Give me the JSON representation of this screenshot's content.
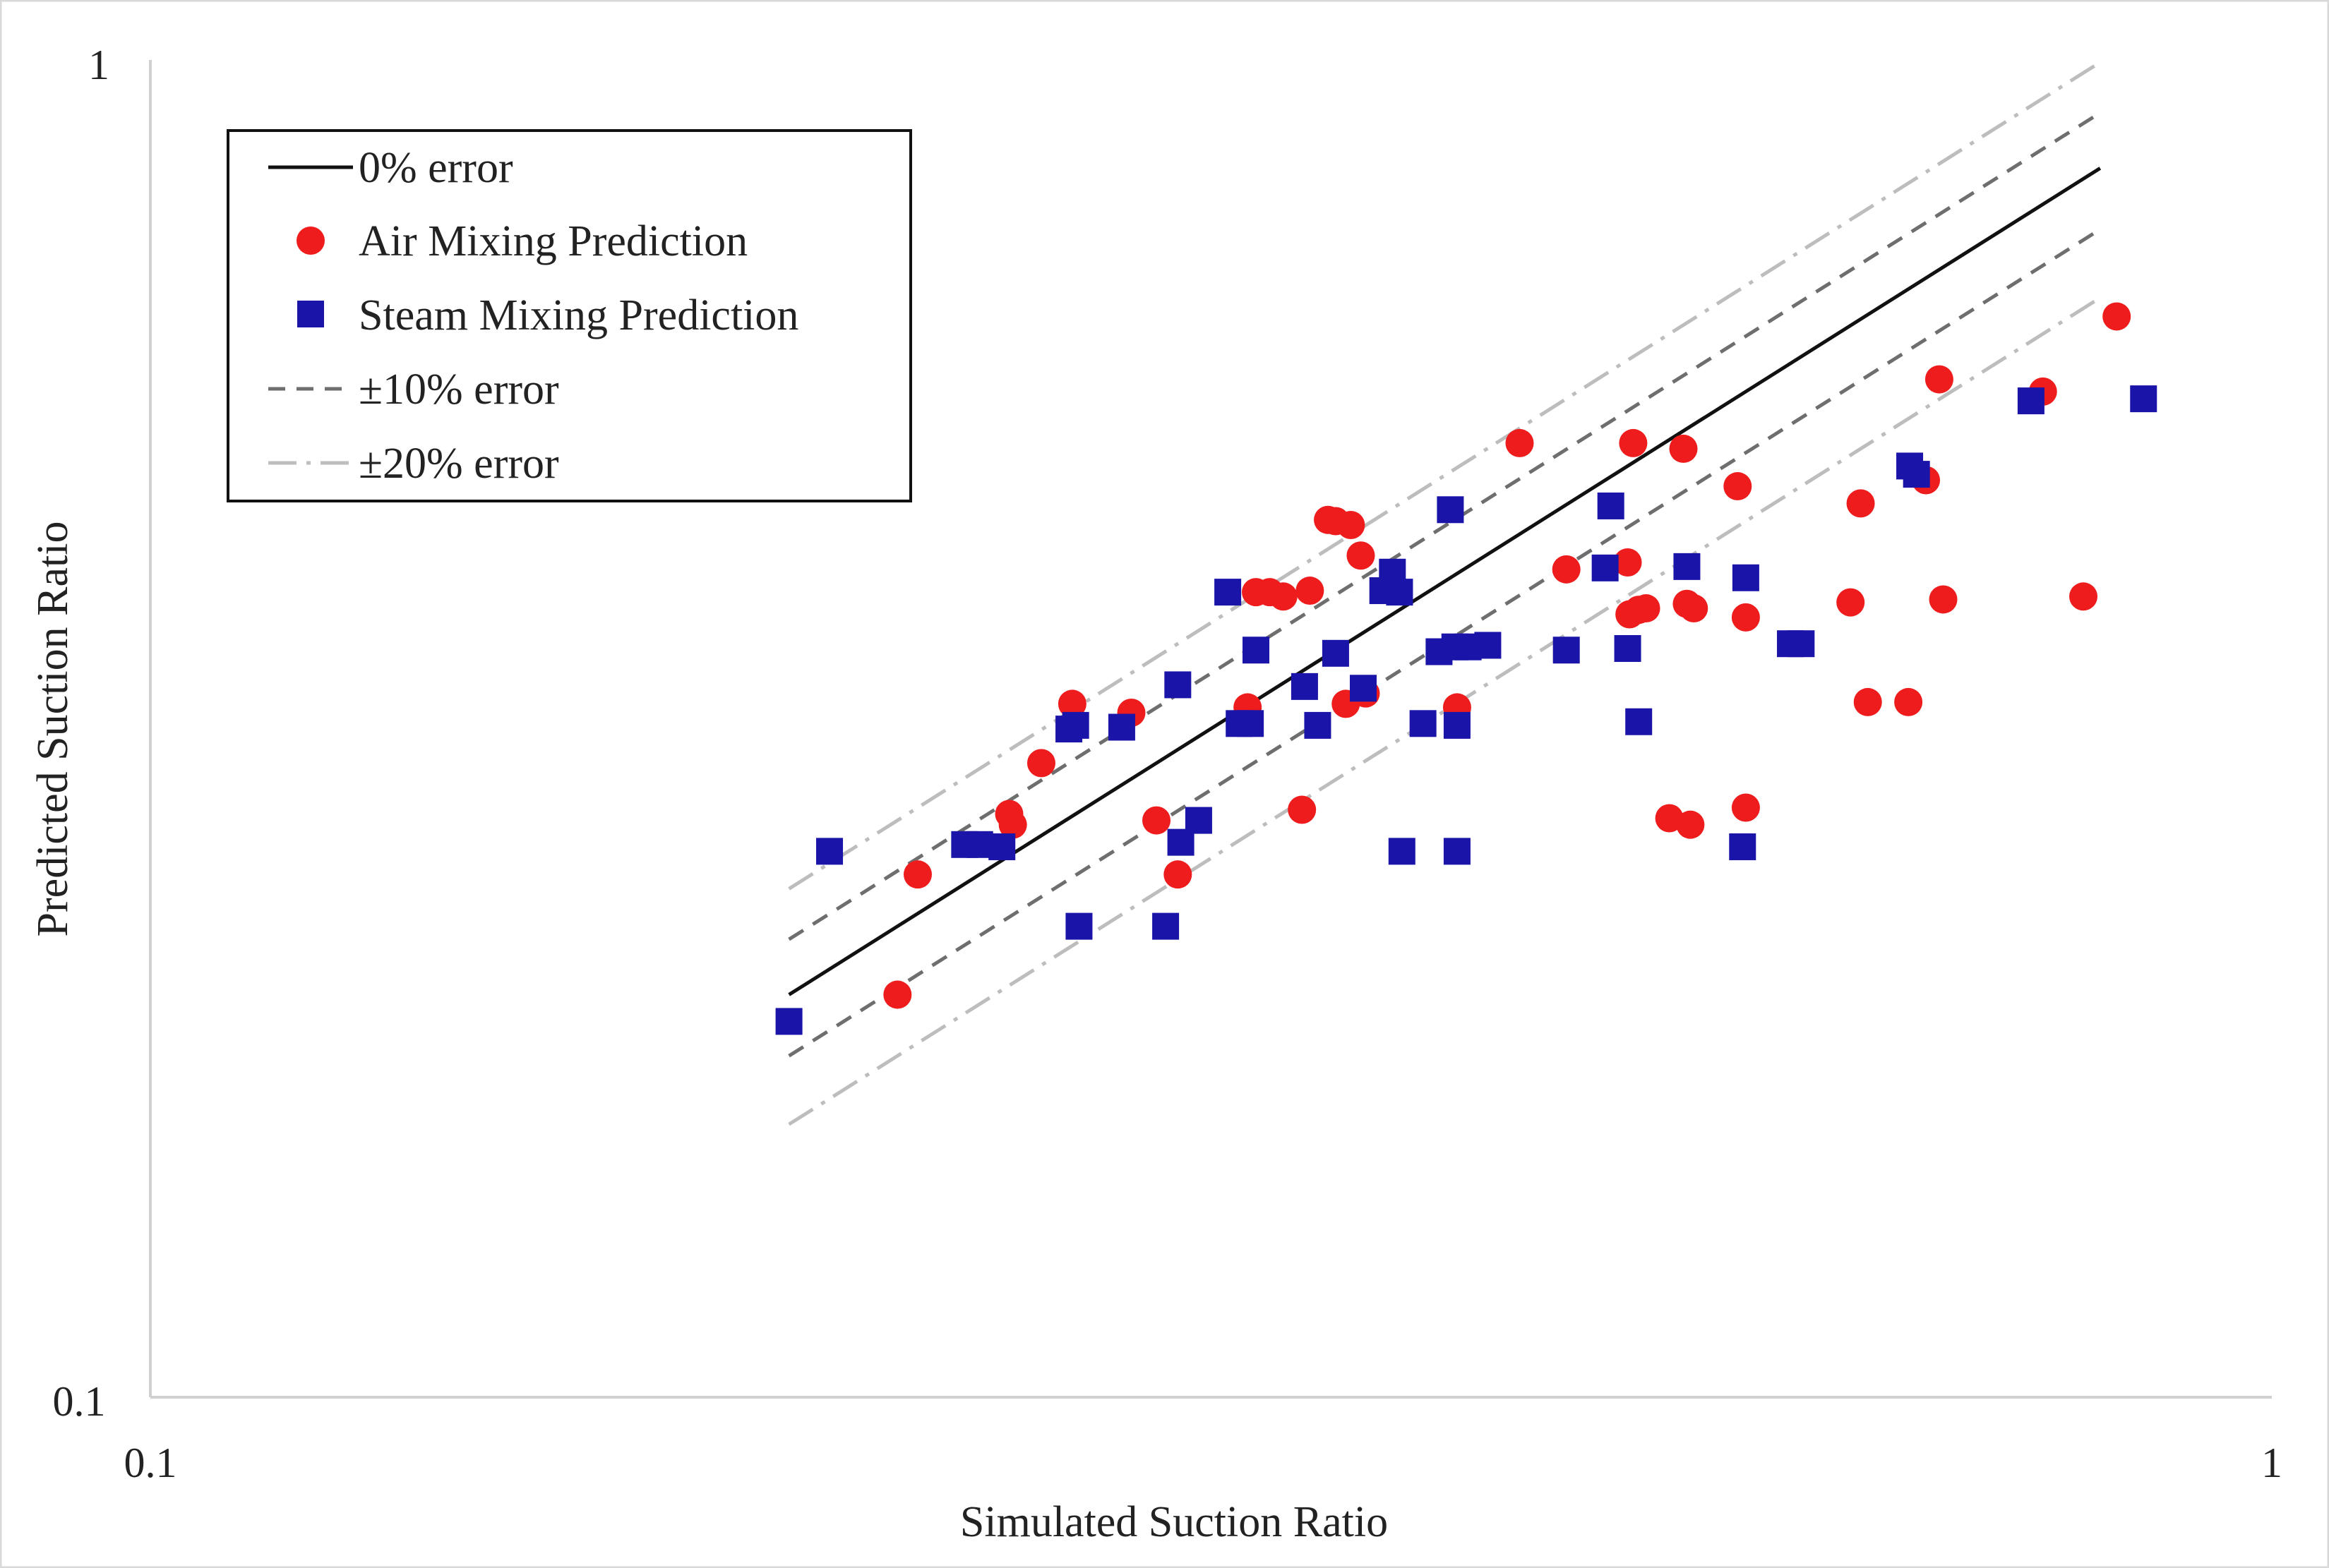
{
  "chart_data": {
    "type": "scatter",
    "title": "",
    "xlabel": "Simulated Suction Ratio",
    "ylabel": "Predicted Suction Ratio",
    "xscale": "log",
    "yscale": "log",
    "xlim": [
      0.1,
      1
    ],
    "ylim": [
      0.1,
      1
    ],
    "x_ticks": [
      0.1,
      1
    ],
    "x_tick_labels": [
      "0.1",
      "1"
    ],
    "y_ticks": [
      0.1,
      1
    ],
    "y_tick_labels": [
      "0.1",
      "1"
    ],
    "grid": false,
    "legend_position": "top-left",
    "colors": {
      "air": "#ee1c1c",
      "steam": "#1a14a8",
      "zero_line": "#111111",
      "ten_line": "#6e6e6e",
      "twenty_line": "#bdbdbd"
    },
    "reference_lines": [
      {
        "id": "zero",
        "name": "0% error",
        "factor": 1.0,
        "x_range": [
          0.2,
          0.83
        ],
        "dash": "solid"
      },
      {
        "id": "plus10",
        "name": "±10% error",
        "factor": 1.1,
        "x_range": [
          0.2,
          0.83
        ],
        "dash": "dash"
      },
      {
        "id": "minus10",
        "name": "±10% error",
        "factor": 0.9,
        "x_range": [
          0.2,
          0.83
        ],
        "dash": "dash"
      },
      {
        "id": "plus20",
        "name": "±20% error",
        "factor": 1.2,
        "x_range": [
          0.2,
          0.83
        ],
        "dash": "dashdot"
      },
      {
        "id": "minus20",
        "name": "±20% error",
        "factor": 0.8,
        "x_range": [
          0.2,
          0.83
        ],
        "dash": "dashdot"
      }
    ],
    "series": [
      {
        "name": "Air Mixing Prediction",
        "marker": "circle",
        "points": [
          [
            0.225,
            0.2
          ],
          [
            0.23,
            0.246
          ],
          [
            0.254,
            0.273
          ],
          [
            0.255,
            0.268
          ],
          [
            0.263,
            0.298
          ],
          [
            0.272,
            0.33
          ],
          [
            0.29,
            0.325
          ],
          [
            0.298,
            0.27
          ],
          [
            0.305,
            0.246
          ],
          [
            0.329,
            0.328
          ],
          [
            0.332,
            0.4
          ],
          [
            0.337,
            0.4
          ],
          [
            0.342,
            0.397
          ],
          [
            0.349,
            0.275
          ],
          [
            0.352,
            0.401
          ],
          [
            0.359,
            0.453
          ],
          [
            0.362,
            0.452
          ],
          [
            0.366,
            0.33
          ],
          [
            0.368,
            0.449
          ],
          [
            0.372,
            0.426
          ],
          [
            0.374,
            0.336
          ],
          [
            0.413,
            0.328
          ],
          [
            0.442,
            0.517
          ],
          [
            0.465,
            0.416
          ],
          [
            0.497,
            0.421
          ],
          [
            0.498,
            0.385
          ],
          [
            0.503,
            0.388
          ],
          [
            0.507,
            0.389
          ],
          [
            0.52,
            0.271
          ],
          [
            0.5,
            0.517
          ],
          [
            0.53,
            0.392
          ],
          [
            0.534,
            0.389
          ],
          [
            0.528,
            0.512
          ],
          [
            0.532,
            0.268
          ],
          [
            0.56,
            0.48
          ],
          [
            0.565,
            0.383
          ],
          [
            0.565,
            0.276
          ],
          [
            0.633,
            0.393
          ],
          [
            0.64,
            0.466
          ],
          [
            0.645,
            0.331
          ],
          [
            0.674,
            0.331
          ],
          [
            0.687,
            0.485
          ],
          [
            0.697,
            0.577
          ],
          [
            0.7,
            0.395
          ],
          [
            0.78,
            0.565
          ],
          [
            0.815,
            0.397
          ],
          [
            0.845,
            0.643
          ]
        ]
      },
      {
        "name": "Steam Mixing Prediction",
        "marker": "square",
        "points": [
          [
            0.2,
            0.191
          ],
          [
            0.209,
            0.256
          ],
          [
            0.242,
            0.259
          ],
          [
            0.246,
            0.259
          ],
          [
            0.252,
            0.258
          ],
          [
            0.271,
            0.316
          ],
          [
            0.273,
            0.318
          ],
          [
            0.274,
            0.225
          ],
          [
            0.287,
            0.317
          ],
          [
            0.301,
            0.225
          ],
          [
            0.305,
            0.341
          ],
          [
            0.306,
            0.26
          ],
          [
            0.312,
            0.27
          ],
          [
            0.322,
            0.4
          ],
          [
            0.326,
            0.319
          ],
          [
            0.33,
            0.319
          ],
          [
            0.332,
            0.362
          ],
          [
            0.35,
            0.34
          ],
          [
            0.355,
            0.318
          ],
          [
            0.362,
            0.36
          ],
          [
            0.373,
            0.339
          ],
          [
            0.381,
            0.401
          ],
          [
            0.385,
            0.414
          ],
          [
            0.388,
            0.4
          ],
          [
            0.389,
            0.256
          ],
          [
            0.398,
            0.319
          ],
          [
            0.405,
            0.361
          ],
          [
            0.41,
            0.461
          ],
          [
            0.412,
            0.364
          ],
          [
            0.413,
            0.318
          ],
          [
            0.413,
            0.256
          ],
          [
            0.418,
            0.364
          ],
          [
            0.427,
            0.365
          ],
          [
            0.465,
            0.362
          ],
          [
            0.485,
            0.417
          ],
          [
            0.488,
            0.464
          ],
          [
            0.497,
            0.363
          ],
          [
            0.503,
            0.32
          ],
          [
            0.53,
            0.418
          ],
          [
            0.565,
            0.41
          ],
          [
            0.563,
            0.258
          ],
          [
            0.593,
            0.366
          ],
          [
            0.6,
            0.366
          ],
          [
            0.675,
            0.497
          ],
          [
            0.68,
            0.49
          ],
          [
            0.77,
            0.556
          ],
          [
            0.87,
            0.558
          ]
        ]
      }
    ],
    "legend_entries": [
      {
        "label": "0% error",
        "symbol": "solid-line"
      },
      {
        "label": "Air Mixing Prediction",
        "symbol": "circle"
      },
      {
        "label": "Steam Mixing Prediction",
        "symbol": "square"
      },
      {
        "label": "±10% error",
        "symbol": "dash-line"
      },
      {
        "label": "±20% error",
        "symbol": "dashdot-line"
      }
    ]
  }
}
